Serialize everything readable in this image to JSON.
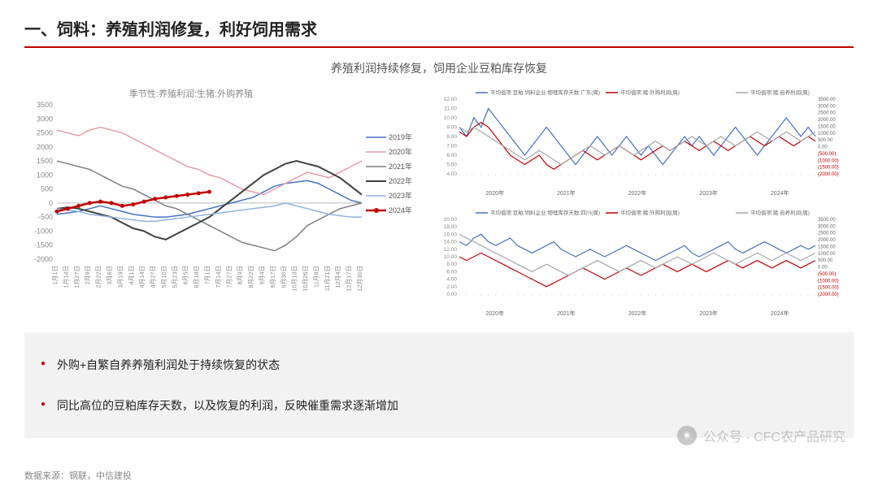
{
  "header": {
    "title": "一、饲料：养殖利润修复，利好饲用需求"
  },
  "subtitle": "养殖利润持续修复，饲用企业豆粕库存恢复",
  "leftChart": {
    "title": "季节性:养殖利润:生猪:外购养殖",
    "ylim": [
      -2000,
      3500
    ],
    "ytick": 500,
    "xlabels": [
      "1月1日",
      "1月14日",
      "1月27日",
      "2月9日",
      "2月22日",
      "3月6日",
      "3月19日",
      "4月1日",
      "4月14日",
      "4月27日",
      "5月10日",
      "5月23日",
      "6月5日",
      "6月18日",
      "7月1日",
      "7月14日",
      "7月27日",
      "8月9日",
      "8月22日",
      "9月4日",
      "9月17日",
      "9月30日",
      "10月13日",
      "10月26日",
      "11月8日",
      "11月21日",
      "12月4日",
      "12月17日",
      "12月30日"
    ],
    "series": [
      {
        "name": "2019年",
        "color": "#4472c4",
        "width": 1.5,
        "dash": "none",
        "data": [
          -400,
          -350,
          -300,
          -200,
          -100,
          -200,
          -300,
          -400,
          -450,
          -500,
          -500,
          -450,
          -400,
          -300,
          -200,
          -100,
          0,
          100,
          200,
          400,
          600,
          700,
          750,
          800,
          700,
          500,
          300,
          100,
          0
        ]
      },
      {
        "name": "2020年",
        "color": "#e89ca8",
        "width": 1.5,
        "dash": "none",
        "data": [
          2600,
          2500,
          2400,
          2600,
          2700,
          2600,
          2500,
          2300,
          2100,
          1900,
          1700,
          1500,
          1300,
          1200,
          1000,
          900,
          700,
          500,
          400,
          300,
          500,
          700,
          900,
          1100,
          1000,
          900,
          1100,
          1300,
          1500
        ]
      },
      {
        "name": "2021年",
        "color": "#7f7f7f",
        "width": 1.5,
        "dash": "none",
        "data": [
          1500,
          1400,
          1300,
          1200,
          1000,
          800,
          600,
          500,
          300,
          100,
          -100,
          -200,
          -400,
          -600,
          -800,
          -1000,
          -1200,
          -1400,
          -1500,
          -1600,
          -1700,
          -1500,
          -1200,
          -800,
          -600,
          -400,
          -200,
          -100,
          0
        ]
      },
      {
        "name": "2022年",
        "color": "#404040",
        "width": 2,
        "dash": "none",
        "data": [
          -200,
          -150,
          -200,
          -300,
          -400,
          -500,
          -700,
          -900,
          -1000,
          -1200,
          -1300,
          -1100,
          -900,
          -700,
          -500,
          -200,
          100,
          400,
          700,
          1000,
          1200,
          1400,
          1500,
          1400,
          1300,
          1100,
          900,
          600,
          300
        ]
      },
      {
        "name": "2023年",
        "color": "#8db4e2",
        "width": 1.5,
        "dash": "none",
        "data": [
          -200,
          -250,
          -300,
          -400,
          -450,
          -500,
          -550,
          -600,
          -650,
          -650,
          -600,
          -550,
          -500,
          -450,
          -400,
          -350,
          -300,
          -250,
          -200,
          -150,
          -100,
          0,
          -100,
          -200,
          -300,
          -400,
          -450,
          -500,
          -500
        ]
      },
      {
        "name": "2024年",
        "color": "#c00000",
        "width": 2.5,
        "dash": "none",
        "marker": true,
        "data": [
          -300,
          -200,
          -100,
          0,
          50,
          0,
          -100,
          -50,
          50,
          150,
          200,
          250,
          300,
          350,
          400
        ]
      }
    ]
  },
  "rightChart1": {
    "legend": [
      "平均值项:豆粕:饲料企业:物理库存天数:广东(周)",
      "平均值项:猪:外购利润(周)",
      "平均值项:猪:自养利润(周)"
    ],
    "legendColors": [
      "#4472c4",
      "#c00000",
      "#a6a6a6"
    ],
    "yLeft": {
      "min": 4,
      "max": 12,
      "step": 1
    },
    "yRight": {
      "min": -2000,
      "max": 3500,
      "step": 500,
      "colors": {
        "neg": "#c00000",
        "pos": "#4472c4"
      }
    },
    "xYears": [
      "2020年",
      "2021年",
      "2022年",
      "2023年",
      "2024年"
    ],
    "lines": [
      {
        "color": "#4472c4",
        "data": [
          9,
          8,
          10,
          9,
          11,
          10,
          9,
          8,
          7,
          6,
          7,
          8,
          9,
          8,
          7,
          6,
          5,
          6,
          7,
          8,
          7,
          6,
          7,
          8,
          7,
          6,
          7,
          6,
          5,
          6,
          7,
          8,
          7,
          8,
          7,
          6,
          7,
          8,
          9,
          8,
          7,
          6,
          7,
          8,
          9,
          10,
          9,
          8,
          9,
          8
        ]
      },
      {
        "color": "#c00000",
        "data": [
          8.5,
          8,
          9,
          9.5,
          9,
          8,
          7,
          6,
          5.5,
          5,
          5.5,
          6,
          5,
          4.5,
          5,
          5.5,
          6,
          6.5,
          6,
          5.5,
          6,
          6.5,
          7,
          6.5,
          6,
          5.5,
          6,
          6.5,
          7,
          6.5,
          7,
          7.5,
          7,
          6.5,
          7,
          7.5,
          7,
          6.5,
          7,
          7.5,
          8,
          7.5,
          7,
          7.5,
          8,
          7.5,
          7,
          7.5,
          8,
          7.5
        ]
      },
      {
        "color": "#a6a6a6",
        "data": [
          9,
          8.5,
          9,
          8.5,
          8,
          7.5,
          7,
          6.5,
          6,
          5.5,
          6,
          6.5,
          6,
          5.5,
          5,
          5.5,
          6,
          6.5,
          7,
          6.5,
          6,
          6.5,
          7,
          6.5,
          6,
          6.5,
          7,
          7.5,
          7,
          6.5,
          7,
          7.5,
          8,
          7.5,
          7,
          7.5,
          8,
          7.5,
          7,
          7.5,
          8,
          8.5,
          8,
          7.5,
          8,
          8.5,
          8,
          7.5,
          8,
          8.5
        ]
      }
    ]
  },
  "rightChart2": {
    "legend": [
      "平均值项:豆粕:饲料企业:物理库存天数:四川(周)",
      "平均值项:猪:外购利润(周)",
      "平均值项:猪:自养利润(周)"
    ],
    "legendColors": [
      "#4472c4",
      "#c00000",
      "#a6a6a6"
    ],
    "yLeft": {
      "min": 0,
      "max": 20,
      "step": 2
    },
    "yRight": {
      "min": -2000,
      "max": 3500,
      "step": 500
    },
    "xYears": [
      "2020年",
      "2021年",
      "2022年",
      "2023年",
      "2024年"
    ],
    "lines": [
      {
        "color": "#4472c4",
        "data": [
          14,
          13,
          15,
          16,
          14,
          13,
          14,
          15,
          13,
          12,
          11,
          12,
          13,
          14,
          12,
          11,
          10,
          11,
          12,
          11,
          10,
          11,
          12,
          13,
          12,
          11,
          10,
          9,
          10,
          11,
          12,
          13,
          11,
          10,
          11,
          12,
          13,
          14,
          12,
          11,
          12,
          13,
          14,
          13,
          12,
          11,
          12,
          13,
          12,
          13
        ]
      },
      {
        "color": "#c00000",
        "data": [
          10,
          9,
          10,
          11,
          10,
          9,
          8,
          7,
          6,
          5,
          4,
          3,
          2,
          3,
          4,
          5,
          6,
          7,
          6,
          5,
          4,
          5,
          6,
          7,
          6,
          5,
          6,
          7,
          8,
          7,
          6,
          7,
          8,
          7,
          6,
          7,
          8,
          9,
          8,
          7,
          8,
          9,
          8,
          7,
          8,
          9,
          8,
          7,
          8,
          9
        ]
      },
      {
        "color": "#a6a6a6",
        "data": [
          16,
          15,
          14,
          13,
          12,
          11,
          10,
          9,
          8,
          7,
          6,
          7,
          8,
          7,
          6,
          5,
          6,
          7,
          8,
          9,
          8,
          7,
          6,
          7,
          8,
          9,
          8,
          7,
          8,
          9,
          10,
          9,
          8,
          9,
          10,
          11,
          10,
          9,
          8,
          9,
          10,
          11,
          10,
          9,
          10,
          11,
          10,
          9,
          10,
          11
        ]
      }
    ]
  },
  "bullets": [
    "外购+自繁自养养殖利润处于持续恢复的状态",
    "同比高位的豆粕库存天数，以及恢复的利润，反映催重需求逐渐增加"
  ],
  "source": "数据来源：钢联，中信建投",
  "watermark": {
    "label": "公众号 · CFC农产品研究"
  }
}
